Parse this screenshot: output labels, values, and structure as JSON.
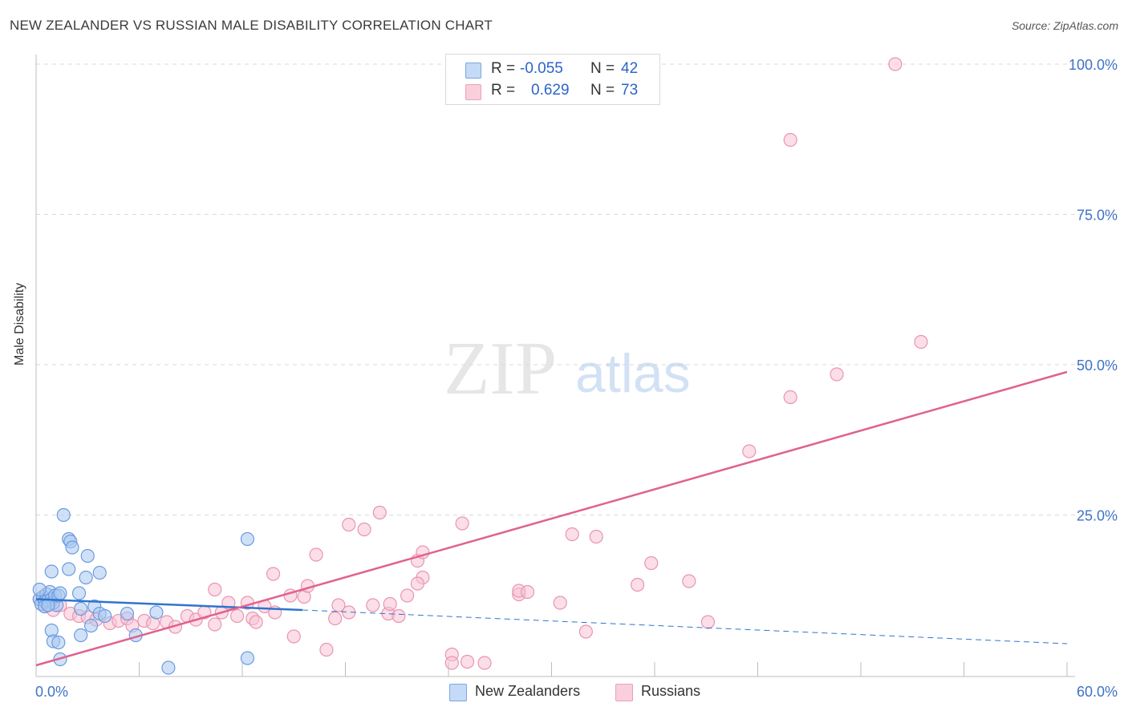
{
  "header": {
    "title": "NEW ZEALANDER VS RUSSIAN MALE DISABILITY CORRELATION CHART",
    "source": "Source: ZipAtlas.com"
  },
  "watermark": {
    "zip": "ZIP",
    "atlas": "atlas"
  },
  "legend": {
    "rows": [
      {
        "r_label": "R =",
        "r_value": "-0.055",
        "n_label": "N =",
        "n_value": "42"
      },
      {
        "r_label": "R =",
        "r_value": "0.629",
        "n_label": "N =",
        "n_value": "73"
      }
    ]
  },
  "bottom_legend": {
    "nz": "New Zealanders",
    "ru": "Russians"
  },
  "colors": {
    "nz_fill": "#a9c8f0",
    "nz_stroke": "#6b9be0",
    "nz_line": "#2f74d0",
    "ru_fill": "#f7c3d3",
    "ru_stroke": "#e995b2",
    "ru_line": "#e0628e",
    "tick_text": "#3f72c7",
    "grid": "#d9d9d9"
  },
  "chart_data": {
    "type": "scatter",
    "title": "NEW ZEALANDER VS RUSSIAN MALE DISABILITY CORRELATION CHART",
    "xlabel": "",
    "ylabel": "Male Disability",
    "xlim": [
      0,
      60
    ],
    "ylim": [
      0,
      100
    ],
    "x_tick_labels": [
      "0.0%",
      "60.0%"
    ],
    "y_ticks": [
      25,
      50,
      75,
      100
    ],
    "y_tick_labels": [
      "25.0%",
      "50.0%",
      "75.0%",
      "100.0%"
    ],
    "grid": true,
    "series": [
      {
        "name": "New Zealanders",
        "r": -0.055,
        "n": 42,
        "trend": {
          "x0": 0,
          "y0": 11.0,
          "x1": 15.5,
          "y1": 9.2,
          "dashed_to_x": 60,
          "dashed_to_y": 3.6
        },
        "points": [
          [
            0.2,
            11.0
          ],
          [
            0.3,
            10.2
          ],
          [
            0.4,
            11.4
          ],
          [
            0.5,
            10.6
          ],
          [
            0.6,
            11.8
          ],
          [
            0.7,
            10.8
          ],
          [
            0.8,
            12.2
          ],
          [
            0.9,
            11.0
          ],
          [
            1.0,
            10.4
          ],
          [
            1.1,
            11.6
          ],
          [
            1.2,
            10.0
          ],
          [
            0.5,
            9.8
          ],
          [
            0.9,
            5.8
          ],
          [
            1.0,
            4.0
          ],
          [
            1.3,
            3.8
          ],
          [
            1.4,
            1.0
          ],
          [
            0.9,
            15.6
          ],
          [
            1.3,
            11.6
          ],
          [
            1.4,
            12.0
          ],
          [
            1.6,
            25.0
          ],
          [
            1.9,
            21.0
          ],
          [
            2.0,
            20.6
          ],
          [
            2.1,
            19.6
          ],
          [
            1.9,
            16.0
          ],
          [
            2.6,
            9.4
          ],
          [
            2.6,
            5.0
          ],
          [
            2.9,
            14.6
          ],
          [
            3.0,
            18.2
          ],
          [
            3.2,
            6.6
          ],
          [
            3.7,
            15.4
          ],
          [
            3.4,
            9.8
          ],
          [
            3.7,
            8.6
          ],
          [
            5.3,
            8.6
          ],
          [
            5.8,
            5.0
          ],
          [
            7.0,
            8.8
          ],
          [
            7.7,
            -0.4
          ],
          [
            12.3,
            21.0
          ],
          [
            12.3,
            1.2
          ],
          [
            2.5,
            12.0
          ],
          [
            0.2,
            12.6
          ],
          [
            0.7,
            10.0
          ],
          [
            4.0,
            8.2
          ]
        ]
      },
      {
        "name": "Russians",
        "r": 0.629,
        "n": 73,
        "trend": {
          "x0": 0,
          "y0": 0.0,
          "x1": 60,
          "y1": 48.8
        },
        "points": [
          [
            0.2,
            11.0
          ],
          [
            0.5,
            9.8
          ],
          [
            1.0,
            9.2
          ],
          [
            1.4,
            10.0
          ],
          [
            2.0,
            8.6
          ],
          [
            2.5,
            8.2
          ],
          [
            3.0,
            8.0
          ],
          [
            3.5,
            7.6
          ],
          [
            4.3,
            7.0
          ],
          [
            4.8,
            7.4
          ],
          [
            5.3,
            7.8
          ],
          [
            5.6,
            6.6
          ],
          [
            6.3,
            7.4
          ],
          [
            6.8,
            7.0
          ],
          [
            7.6,
            7.2
          ],
          [
            8.1,
            6.4
          ],
          [
            8.8,
            8.2
          ],
          [
            9.3,
            7.6
          ],
          [
            9.8,
            8.8
          ],
          [
            10.4,
            12.6
          ],
          [
            10.4,
            6.8
          ],
          [
            10.8,
            8.8
          ],
          [
            11.2,
            10.4
          ],
          [
            11.7,
            8.2
          ],
          [
            12.3,
            10.4
          ],
          [
            12.6,
            7.8
          ],
          [
            12.8,
            7.2
          ],
          [
            13.3,
            9.8
          ],
          [
            13.9,
            8.8
          ],
          [
            13.8,
            15.2
          ],
          [
            14.8,
            11.6
          ],
          [
            15.0,
            4.8
          ],
          [
            15.6,
            11.4
          ],
          [
            15.8,
            13.2
          ],
          [
            16.3,
            18.4
          ],
          [
            16.9,
            2.6
          ],
          [
            17.4,
            7.8
          ],
          [
            17.6,
            10.0
          ],
          [
            18.2,
            8.8
          ],
          [
            18.2,
            23.4
          ],
          [
            19.1,
            22.6
          ],
          [
            19.6,
            10.0
          ],
          [
            20.0,
            25.4
          ],
          [
            20.5,
            8.6
          ],
          [
            20.6,
            10.2
          ],
          [
            21.1,
            8.2
          ],
          [
            21.6,
            11.6
          ],
          [
            22.2,
            17.4
          ],
          [
            22.5,
            18.8
          ],
          [
            22.5,
            14.6
          ],
          [
            22.2,
            13.6
          ],
          [
            24.2,
            1.8
          ],
          [
            24.2,
            0.4
          ],
          [
            24.8,
            23.6
          ],
          [
            25.1,
            0.6
          ],
          [
            26.1,
            0.4
          ],
          [
            28.1,
            11.8
          ],
          [
            28.1,
            12.4
          ],
          [
            28.6,
            12.2
          ],
          [
            30.5,
            10.4
          ],
          [
            31.2,
            21.8
          ],
          [
            32.0,
            5.6
          ],
          [
            32.6,
            21.4
          ],
          [
            35.0,
            13.4
          ],
          [
            35.8,
            17.0
          ],
          [
            38.0,
            14.0
          ],
          [
            39.1,
            7.2
          ],
          [
            41.5,
            35.6
          ],
          [
            43.9,
            44.6
          ],
          [
            43.9,
            87.4
          ],
          [
            46.6,
            48.4
          ],
          [
            50.0,
            100.0
          ],
          [
            51.5,
            53.8
          ]
        ]
      }
    ]
  }
}
